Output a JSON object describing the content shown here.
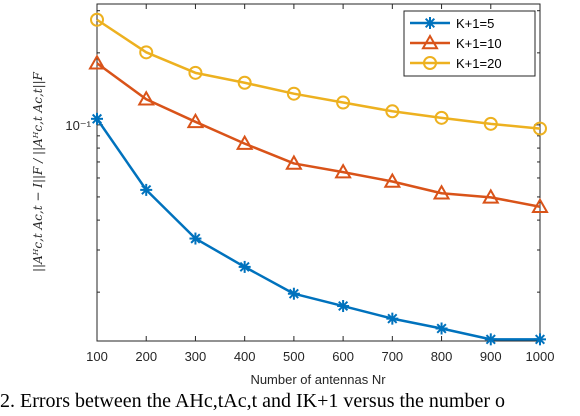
{
  "chart_data": {
    "type": "line",
    "x": [
      100,
      200,
      300,
      400,
      500,
      600,
      700,
      800,
      900,
      1000
    ],
    "xlabel": "Number of antennas Nr",
    "ylabel": "||Aᴴc,t Ac,t − I||F / ||Aᴴc,t Ac,t||F",
    "yscale": "log",
    "ylim": [
      0.0125,
      0.32
    ],
    "xlim": [
      100,
      1000
    ],
    "xticks": [
      "100",
      "200",
      "300",
      "400",
      "500",
      "600",
      "700",
      "800",
      "900",
      "1000"
    ],
    "ytick_label": "10⁻¹",
    "grid": false,
    "legend_position": "top-right",
    "series": [
      {
        "name": "K+1=5",
        "color": "#0072BD",
        "marker": "asterisk",
        "values": [
          0.106,
          0.0535,
          0.0335,
          0.0255,
          0.0197,
          0.0175,
          0.0155,
          0.0141,
          0.0127,
          0.0127
        ]
      },
      {
        "name": "K+1=10",
        "color": "#D95319",
        "marker": "triangle",
        "values": [
          0.181,
          0.128,
          0.103,
          0.0835,
          0.069,
          0.0635,
          0.058,
          0.0518,
          0.0498,
          0.0455
        ]
      },
      {
        "name": "K+1=20",
        "color": "#EDB120",
        "marker": "circle",
        "values": [
          0.275,
          0.201,
          0.165,
          0.15,
          0.135,
          0.124,
          0.114,
          0.107,
          0.101,
          0.0965
        ]
      }
    ]
  },
  "caption": "2.  Errors between the AHc,tAc,t and IK+1 versus the number o"
}
